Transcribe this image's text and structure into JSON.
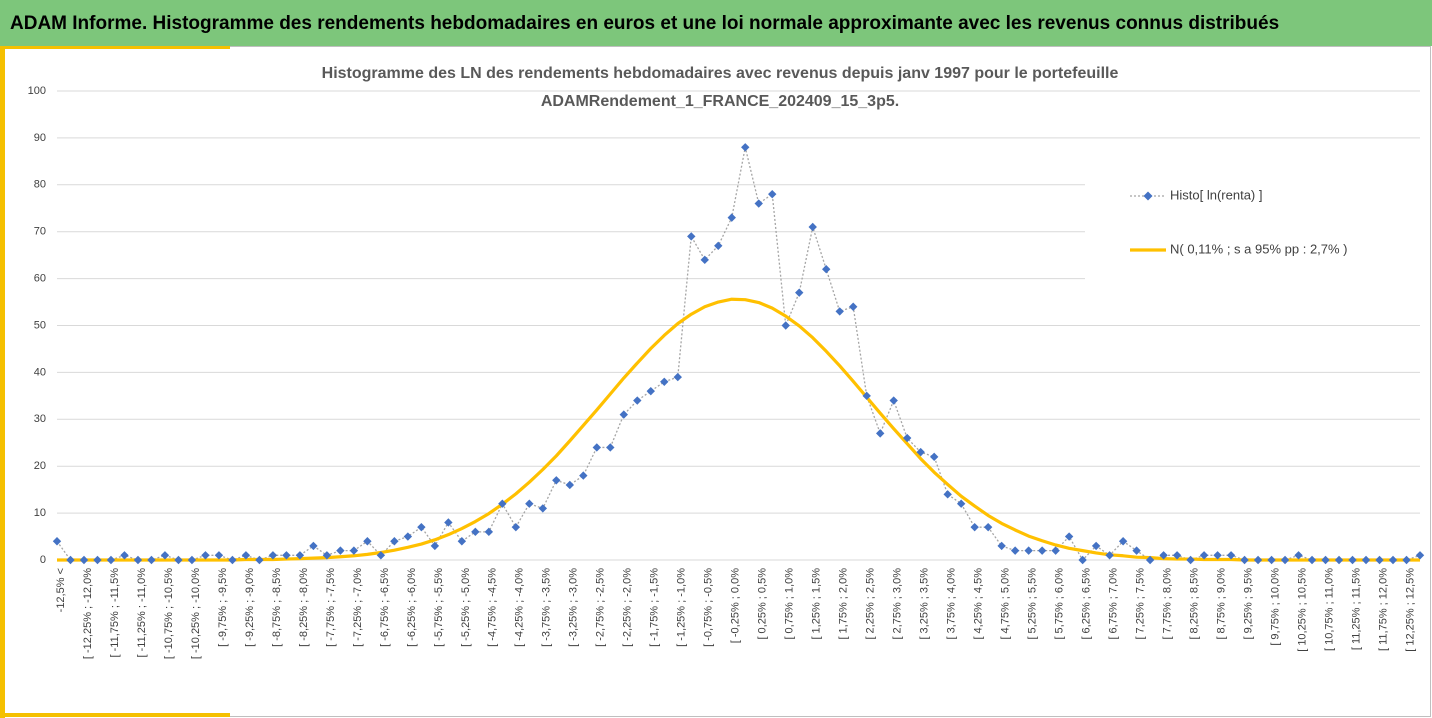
{
  "header": {
    "title": "ADAM Informe. Histogramme des rendements hebdomadaires en euros et une loi normale approximante avec les revenus connus distribués"
  },
  "chart_data": {
    "type": "line",
    "title": [
      "Histogramme des LN des rendements hebdomadaires avec revenus depuis janv 1997 pour le portefeuille",
      "ADAMRendement_1_FRANCE_202409_15_3p5."
    ],
    "categories": [
      "-12,5% <",
      null,
      "[ -12,25% ; -12,0%",
      null,
      "[ -11,75% ; -11,5%",
      null,
      "[ -11,25% ; -11,0%",
      null,
      "[ -10,75% ; -10,5%",
      null,
      "[ -10,25% ; -10,0%",
      null,
      "[ -9,75% ; -9,5%",
      null,
      "[ -9,25% ; -9,0%",
      null,
      "[ -8,75% ; -8,5%",
      null,
      "[ -8,25% ; -8,0%",
      null,
      "[ -7,75% ; -7,5%",
      null,
      "[ -7,25% ; -7,0%",
      null,
      "[ -6,75% ; -6,5%",
      null,
      "[ -6,25% ; -6,0%",
      null,
      "[ -5,75% ; -5,5%",
      null,
      "[ -5,25% ; -5,0%",
      null,
      "[ -4,75% ; -4,5%",
      null,
      "[ -4,25% ; -4,0%",
      null,
      "[ -3,75% ; -3,5%",
      null,
      "[ -3,25% ; -3,0%",
      null,
      "[ -2,75% ; -2,5%",
      null,
      "[ -2,25% ; -2,0%",
      null,
      "[ -1,75% ; -1,5%",
      null,
      "[ -1,25% ; -1,0%",
      null,
      "[ -0,75% ; -0,5%",
      null,
      "[ -0,25% ; 0,0%",
      null,
      "[ 0,25% ; 0,5%",
      null,
      "[ 0,75% ; 1,0%",
      null,
      "[ 1,25% ; 1,5%",
      null,
      "[ 1,75% ; 2,0%",
      null,
      "[ 2,25% ; 2,5%",
      null,
      "[ 2,75% ; 3,0%",
      null,
      "[ 3,25% ; 3,5%",
      null,
      "[ 3,75% ; 4,0%",
      null,
      "[ 4,25% ; 4,5%",
      null,
      "[ 4,75% ; 5,0%",
      null,
      "[ 5,25% ; 5,5%",
      null,
      "[ 5,75% ; 6,0%",
      null,
      "[ 6,25% ; 6,5%",
      null,
      "[ 6,75% ; 7,0%",
      null,
      "[ 7,25% ; 7,5%",
      null,
      "[ 7,75% ; 8,0%",
      null,
      "[ 8,25% ; 8,5%",
      null,
      "[ 8,75% ; 9,0%",
      null,
      "[ 9,25% ; 9,5%",
      null,
      "[ 9,75% ; 10,0%",
      null,
      "[ 10,25% ; 10,5%",
      null,
      "[ 10,75% ; 11,0%",
      null,
      "[ 11,25% ; 11,5%",
      null,
      "[ 11,75% ; 12,0%",
      null,
      "[ 12,25% ; 12,5%",
      null
    ],
    "series": [
      {
        "name": "Histo[ ln(renta) ]",
        "color": "#4472c4",
        "values": [
          4,
          0,
          0,
          0,
          0,
          1,
          0,
          0,
          1,
          0,
          0,
          1,
          1,
          0,
          1,
          0,
          1,
          1,
          1,
          3,
          1,
          2,
          2,
          4,
          1,
          4,
          5,
          7,
          3,
          8,
          4,
          6,
          6,
          12,
          7,
          12,
          11,
          17,
          16,
          18,
          24,
          24,
          31,
          34,
          36,
          38,
          39,
          69,
          64,
          67,
          73,
          88,
          76,
          78,
          50,
          57,
          71,
          62,
          53,
          54,
          35,
          27,
          34,
          26,
          23,
          22,
          14,
          12,
          7,
          7,
          3,
          2,
          2,
          2,
          2,
          5,
          0,
          3,
          1,
          4,
          2,
          0,
          1,
          1,
          0,
          1,
          1,
          1,
          0,
          0,
          0,
          0,
          1,
          0,
          0,
          0,
          0,
          0,
          0,
          0,
          0,
          1
        ]
      },
      {
        "name": "N( 0,11% ; s a 95% pp : 2,7% )",
        "color": "#ffc000",
        "values": [
          0,
          0,
          0,
          0,
          0,
          0,
          0,
          0,
          0,
          0,
          0,
          0,
          0,
          0,
          0.1,
          0.1,
          0.1,
          0.2,
          0.3,
          0.4,
          0.5,
          0.7,
          0.9,
          1.2,
          1.6,
          2.1,
          2.7,
          3.4,
          4.3,
          5.4,
          6.7,
          8.2,
          9.9,
          11.9,
          14.1,
          16.6,
          19.3,
          22.2,
          25.4,
          28.7,
          32.0,
          35.4,
          38.8,
          42.0,
          45.1,
          47.9,
          50.4,
          52.4,
          54.0,
          55.0,
          55.6,
          55.5,
          54.9,
          53.7,
          52.0,
          49.9,
          47.4,
          44.5,
          41.4,
          38.1,
          34.7,
          31.3,
          28.0,
          24.8,
          21.6,
          18.7,
          16.1,
          13.6,
          11.5,
          9.5,
          7.8,
          6.4,
          5.1,
          4.1,
          3.2,
          2.5,
          2.0,
          1.5,
          1.1,
          0.9,
          0.6,
          0.5,
          0.3,
          0.2,
          0.2,
          0.1,
          0.1,
          0.1,
          0,
          0,
          0,
          0,
          0,
          0,
          0,
          0,
          0,
          0,
          0,
          0,
          0,
          0
        ]
      }
    ],
    "ylim": [
      0,
      100
    ],
    "yticks": [
      0,
      10,
      20,
      30,
      40,
      50,
      60,
      70,
      80,
      90,
      100
    ],
    "grid": true
  }
}
